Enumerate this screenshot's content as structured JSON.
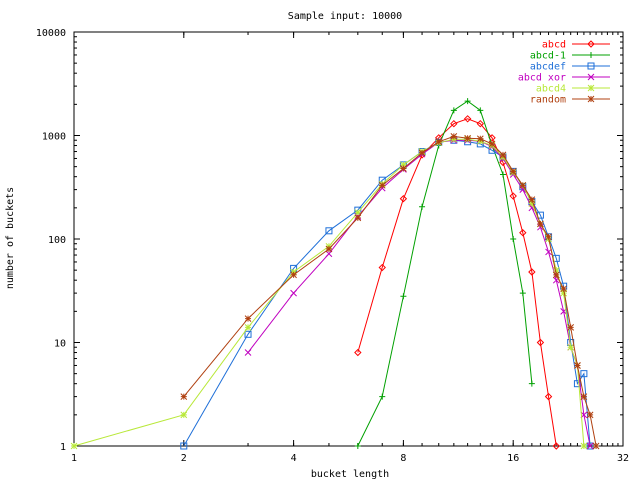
{
  "chart_data": {
    "type": "line",
    "title": "Sample input: 10000",
    "xlabel": "bucket length",
    "ylabel": "number of buckets",
    "x_scale": "log2",
    "y_scale": "log10",
    "xlim": [
      1,
      32
    ],
    "ylim": [
      1,
      10000
    ],
    "x_ticks": [
      {
        "value": 1,
        "label": "1"
      },
      {
        "value": 2,
        "label": "2"
      },
      {
        "value": 4,
        "label": "4"
      },
      {
        "value": 8,
        "label": "8"
      },
      {
        "value": 16,
        "label": "16"
      },
      {
        "value": 32,
        "label": "32"
      }
    ],
    "y_ticks": [
      {
        "value": 1,
        "label": "1"
      },
      {
        "value": 10,
        "label": "10"
      },
      {
        "value": 100,
        "label": "100"
      },
      {
        "value": 1000,
        "label": "1000"
      },
      {
        "value": 10000,
        "label": "10000"
      }
    ],
    "grid": false,
    "legend_position": "top-right",
    "series": [
      {
        "name": "abcd",
        "color": "#ff0000",
        "marker": "diamond",
        "points": [
          [
            6,
            8
          ],
          [
            7,
            53
          ],
          [
            8,
            245
          ],
          [
            9,
            650
          ],
          [
            10,
            950
          ],
          [
            11,
            1300
          ],
          [
            12,
            1450
          ],
          [
            13,
            1300
          ],
          [
            14,
            950
          ],
          [
            15,
            550
          ],
          [
            16,
            260
          ],
          [
            17,
            115
          ],
          [
            18,
            48
          ],
          [
            19,
            10
          ],
          [
            20,
            3
          ],
          [
            21,
            1
          ]
        ]
      },
      {
        "name": "abcd-1",
        "color": "#00a000",
        "marker": "plus",
        "points": [
          [
            6,
            1
          ],
          [
            7,
            3
          ],
          [
            8,
            28
          ],
          [
            9,
            205
          ],
          [
            10,
            800
          ],
          [
            11,
            1750
          ],
          [
            12,
            2150
          ],
          [
            13,
            1750
          ],
          [
            14,
            800
          ],
          [
            15,
            420
          ],
          [
            16,
            100
          ],
          [
            17,
            30
          ],
          [
            18,
            4
          ]
        ]
      },
      {
        "name": "abcdef",
        "color": "#1e6fd8",
        "marker": "square",
        "points": [
          [
            2,
            1
          ],
          [
            3,
            12
          ],
          [
            4,
            52
          ],
          [
            5,
            120
          ],
          [
            6,
            190
          ],
          [
            7,
            370
          ],
          [
            8,
            520
          ],
          [
            9,
            700
          ],
          [
            10,
            860
          ],
          [
            11,
            900
          ],
          [
            12,
            870
          ],
          [
            13,
            830
          ],
          [
            14,
            720
          ],
          [
            15,
            620
          ],
          [
            16,
            450
          ],
          [
            17,
            320
          ],
          [
            18,
            230
          ],
          [
            19,
            170
          ],
          [
            20,
            105
          ],
          [
            21,
            65
          ],
          [
            22,
            35
          ],
          [
            23,
            10
          ],
          [
            24,
            4
          ],
          [
            25,
            5
          ],
          [
            26,
            1
          ]
        ]
      },
      {
        "name": "abcd xor",
        "color": "#c000c0",
        "marker": "cross",
        "points": [
          [
            3,
            8
          ],
          [
            4,
            30
          ],
          [
            5,
            72
          ],
          [
            6,
            165
          ],
          [
            7,
            310
          ],
          [
            8,
            470
          ],
          [
            9,
            660
          ],
          [
            10,
            860
          ],
          [
            11,
            900
          ],
          [
            12,
            900
          ],
          [
            13,
            880
          ],
          [
            14,
            780
          ],
          [
            15,
            600
          ],
          [
            16,
            420
          ],
          [
            17,
            300
          ],
          [
            18,
            200
          ],
          [
            19,
            130
          ],
          [
            20,
            75
          ],
          [
            21,
            40
          ],
          [
            22,
            20
          ],
          [
            23,
            9
          ],
          [
            24,
            6
          ],
          [
            25,
            2
          ],
          [
            26,
            1
          ]
        ]
      },
      {
        "name": "abcd4",
        "color": "#b8e838",
        "marker": "star",
        "points": [
          [
            1,
            1
          ],
          [
            2,
            2
          ],
          [
            3,
            14
          ],
          [
            4,
            48
          ],
          [
            5,
            85
          ],
          [
            6,
            180
          ],
          [
            7,
            340
          ],
          [
            8,
            520
          ],
          [
            9,
            700
          ],
          [
            10,
            850
          ],
          [
            11,
            920
          ],
          [
            12,
            920
          ],
          [
            13,
            880
          ],
          [
            14,
            800
          ],
          [
            15,
            620
          ],
          [
            16,
            440
          ],
          [
            17,
            330
          ],
          [
            18,
            220
          ],
          [
            19,
            140
          ],
          [
            20,
            100
          ],
          [
            21,
            50
          ],
          [
            22,
            30
          ],
          [
            23,
            9
          ],
          [
            24,
            6
          ],
          [
            25,
            1
          ]
        ]
      },
      {
        "name": "random",
        "color": "#b04010",
        "marker": "asterisk",
        "points": [
          [
            2,
            3
          ],
          [
            3,
            17
          ],
          [
            4,
            45
          ],
          [
            5,
            80
          ],
          [
            6,
            160
          ],
          [
            7,
            330
          ],
          [
            8,
            480
          ],
          [
            9,
            680
          ],
          [
            10,
            870
          ],
          [
            11,
            980
          ],
          [
            12,
            940
          ],
          [
            13,
            930
          ],
          [
            14,
            830
          ],
          [
            15,
            650
          ],
          [
            16,
            450
          ],
          [
            17,
            330
          ],
          [
            18,
            240
          ],
          [
            19,
            140
          ],
          [
            20,
            105
          ],
          [
            21,
            45
          ],
          [
            22,
            33
          ],
          [
            23,
            14
          ],
          [
            24,
            6
          ],
          [
            25,
            3
          ],
          [
            26,
            2
          ],
          [
            27,
            1
          ]
        ]
      }
    ]
  }
}
